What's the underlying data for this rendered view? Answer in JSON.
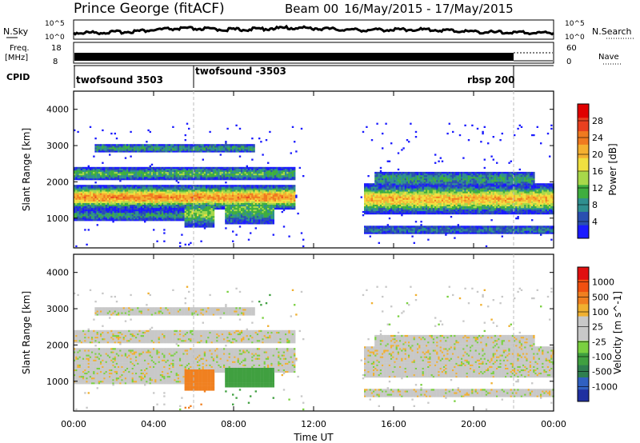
{
  "header": {
    "site": "Prince George (fitACF)",
    "beam": "Beam 00",
    "dates": "16/May/2015 - 17/May/2015"
  },
  "noise_panel": {
    "left_label": "N.Sky",
    "right_label": "N.Search",
    "left_ticks": [
      "10^5",
      "10^0"
    ],
    "right_ticks": [
      "10^5",
      "10^0"
    ]
  },
  "freq_panel": {
    "left_label_line1": "Freq.",
    "left_label_line2": "[MHz]",
    "left_ticks": [
      "18",
      "8"
    ],
    "right_label": "Nave",
    "right_ticks": [
      "60",
      "0"
    ]
  },
  "cpid_panel": {
    "label": "CPID",
    "segments": [
      {
        "name": "twofsound 3503",
        "start_hour": 0
      },
      {
        "name": "twofsound -3503",
        "start_hour": 6
      },
      {
        "name": "rbsp 200",
        "start_hour": 22
      }
    ]
  },
  "chart_data": [
    {
      "type": "heatmap",
      "name": "power",
      "ylabel": "Slant Range [km]",
      "xlabel": "Time UT",
      "xlim_hours": [
        0,
        24
      ],
      "ylim": [
        180,
        4500
      ],
      "yticks": [
        "1000",
        "2000",
        "3000",
        "4000"
      ],
      "colorbar": {
        "label": "Power [dB]",
        "ticks": [
          "4",
          "8",
          "12",
          "16",
          "20",
          "24",
          "28"
        ],
        "colors": [
          "#1a1aff",
          "#2a4fb0",
          "#2f8f8f",
          "#3fae3f",
          "#a8d84a",
          "#f0e040",
          "#f5b030",
          "#f07a20",
          "#e84020",
          "#e00000"
        ]
      }
    },
    {
      "type": "heatmap",
      "name": "velocity",
      "ylabel": "Slant Range [km]",
      "xlabel": "Time UT",
      "xlim_hours": [
        0,
        24
      ],
      "ylim": [
        180,
        4500
      ],
      "yticks": [
        "1000",
        "2000",
        "3000",
        "4000"
      ],
      "colorbar": {
        "label": "Velocity [m s^-1]",
        "ticks": [
          "1000",
          "500",
          "100",
          "25",
          "-25",
          "-100",
          "-500",
          "-1000"
        ],
        "colors": [
          "#2030a0",
          "#3060c0",
          "#2f7f4f",
          "#40a040",
          "#7ad040",
          "#c8c8c8",
          "#c8c8c8",
          "#f0b030",
          "#f08020",
          "#f05010",
          "#e01010"
        ]
      }
    }
  ],
  "time_axis": {
    "ticks": [
      "00:00",
      "04:00",
      "08:00",
      "12:00",
      "16:00",
      "20:00",
      "00:00"
    ],
    "label": "Time UT"
  }
}
